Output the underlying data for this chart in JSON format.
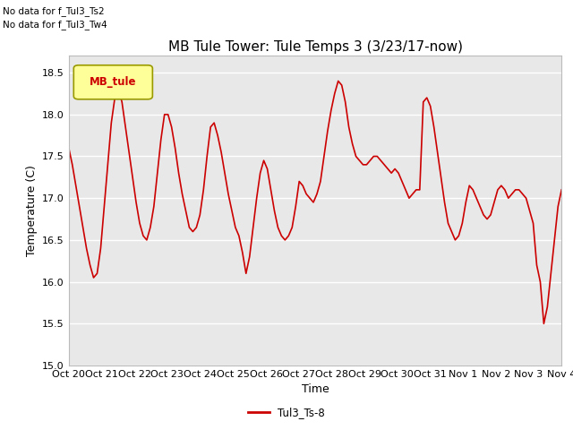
{
  "title": "MB Tule Tower: Tule Temps 3 (3/23/17-now)",
  "xlabel": "Time",
  "ylabel": "Temperature (C)",
  "ylim": [
    15.0,
    18.7
  ],
  "yticks": [
    15.0,
    15.5,
    16.0,
    16.5,
    17.0,
    17.5,
    18.0,
    18.5
  ],
  "no_data_text": [
    "No data for f_Tul3_Ts2",
    "No data for f_Tul3_Tw4"
  ],
  "legend_box_label": "MB_tule",
  "legend_line_label": "Tul3_Ts-8",
  "line_color": "#cc0000",
  "legend_box_color": "#ffff99",
  "legend_box_edge": "#999900",
  "xtick_labels": [
    "Oct 20",
    "Oct 21",
    "Oct 22",
    "Oct 23",
    "Oct 24",
    "Oct 25",
    "Oct 26",
    "Oct 27",
    "Oct 28",
    "Oct 29",
    "Oct 30",
    "Oct 31",
    "Nov 1",
    "Nov 2",
    "Nov 3",
    "Nov 4"
  ],
  "y_values": [
    17.6,
    17.4,
    17.15,
    16.9,
    16.65,
    16.4,
    16.2,
    16.05,
    16.1,
    16.4,
    16.9,
    17.4,
    17.9,
    18.2,
    18.3,
    18.15,
    17.85,
    17.55,
    17.25,
    16.95,
    16.7,
    16.55,
    16.5,
    16.65,
    16.9,
    17.3,
    17.7,
    18.0,
    18.0,
    17.85,
    17.6,
    17.3,
    17.05,
    16.85,
    16.65,
    16.6,
    16.65,
    16.8,
    17.1,
    17.5,
    17.85,
    17.9,
    17.75,
    17.55,
    17.3,
    17.05,
    16.85,
    16.65,
    16.55,
    16.35,
    16.1,
    16.3,
    16.65,
    17.0,
    17.3,
    17.45,
    17.35,
    17.1,
    16.85,
    16.65,
    16.55,
    16.5,
    16.55,
    16.65,
    16.9,
    17.2,
    17.15,
    17.05,
    17.0,
    16.95,
    17.05,
    17.2,
    17.5,
    17.8,
    18.05,
    18.25,
    18.4,
    18.35,
    18.15,
    17.85,
    17.65,
    17.5,
    17.45,
    17.4,
    17.4,
    17.45,
    17.5,
    17.5,
    17.45,
    17.4,
    17.35,
    17.3,
    17.35,
    17.3,
    17.2,
    17.1,
    17.0,
    17.05,
    17.1,
    17.1,
    18.15,
    18.2,
    18.1,
    17.85,
    17.55,
    17.25,
    16.95,
    16.7,
    16.6,
    16.5,
    16.55,
    16.7,
    16.95,
    17.15,
    17.1,
    17.0,
    16.9,
    16.8,
    16.75,
    16.8,
    16.95,
    17.1,
    17.15,
    17.1,
    17.0,
    17.05,
    17.1,
    17.1,
    17.05,
    17.0,
    16.85,
    16.7,
    16.2,
    16.0,
    15.5,
    15.7,
    16.1,
    16.5,
    16.9,
    17.1
  ],
  "background_color": "#ffffff",
  "plot_bg_color": "#e8e8e8",
  "grid_color": "#ffffff",
  "title_fontsize": 11,
  "axis_label_fontsize": 9,
  "tick_fontsize": 8
}
